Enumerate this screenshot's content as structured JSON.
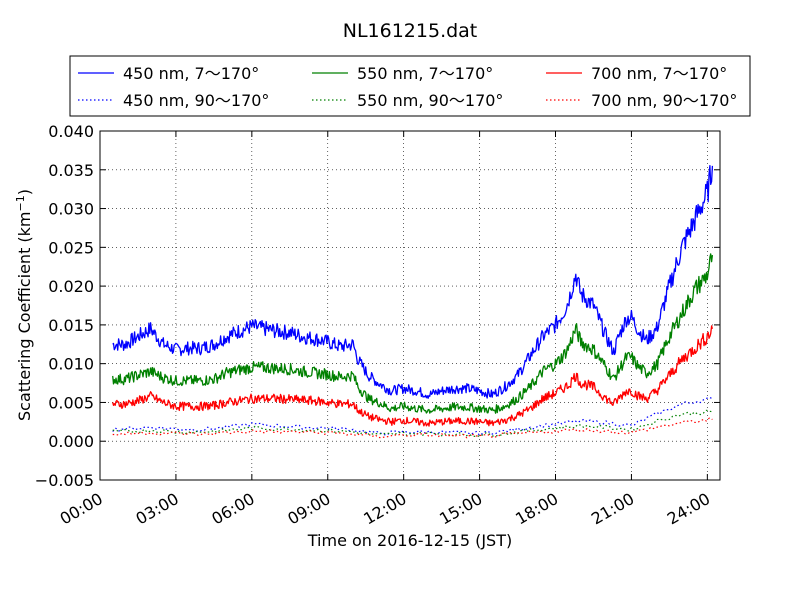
{
  "chart_data": {
    "type": "line",
    "title": "NL161215.dat",
    "xlabel": "Time on 2016-12-15 (JST)",
    "ylabel_main": "Scattering Coefficient (km",
    "ylabel_sup": "−1",
    "ylabel_close": ")",
    "xlim": [
      0,
      24.5
    ],
    "ylim": [
      -0.005,
      0.04
    ],
    "x_ticks": [
      0,
      3,
      6,
      9,
      12,
      15,
      18,
      21,
      24
    ],
    "x_tick_labels": [
      "00:00",
      "03:00",
      "06:00",
      "09:00",
      "12:00",
      "15:00",
      "18:00",
      "21:00",
      "24:00"
    ],
    "y_ticks": [
      -0.005,
      0.0,
      0.005,
      0.01,
      0.015,
      0.02,
      0.025,
      0.03,
      0.035,
      0.04
    ],
    "y_tick_labels": [
      "−0.005",
      "0.000",
      "0.005",
      "0.010",
      "0.015",
      "0.020",
      "0.025",
      "0.030",
      "0.035",
      "0.040"
    ],
    "grid": true,
    "legend_position": "top",
    "x_unit": "hours since 00:00 JST",
    "series": [
      {
        "name": "450 nm, 7～170°",
        "color": "#0000ff",
        "style": "solid",
        "x": [
          0.5,
          1,
          1.5,
          2,
          2.5,
          3,
          3.5,
          4,
          4.5,
          5,
          5.5,
          6,
          6.5,
          7,
          7.5,
          8,
          8.5,
          9,
          9.5,
          10,
          10.2,
          10.6,
          11,
          11.5,
          12,
          12.5,
          13,
          13.5,
          14,
          14.5,
          15,
          15.5,
          16,
          16.5,
          17,
          17.5,
          18,
          18.3,
          18.5,
          18.8,
          19,
          19.5,
          20,
          20.3,
          20.5,
          20.8,
          21,
          21.3,
          21.6,
          22,
          22.5,
          23,
          23.5,
          24,
          24.2
        ],
        "y": [
          0.0125,
          0.0125,
          0.0135,
          0.0145,
          0.0125,
          0.0118,
          0.012,
          0.012,
          0.0125,
          0.0135,
          0.0142,
          0.0148,
          0.0145,
          0.0142,
          0.014,
          0.0135,
          0.0132,
          0.0128,
          0.0122,
          0.0125,
          0.0105,
          0.0085,
          0.0075,
          0.0065,
          0.0068,
          0.0065,
          0.006,
          0.0065,
          0.0068,
          0.0068,
          0.0065,
          0.006,
          0.007,
          0.0085,
          0.011,
          0.0135,
          0.015,
          0.0165,
          0.018,
          0.0215,
          0.019,
          0.0175,
          0.0135,
          0.0115,
          0.0135,
          0.0158,
          0.016,
          0.0142,
          0.013,
          0.0145,
          0.02,
          0.025,
          0.0285,
          0.032,
          0.0355
        ]
      },
      {
        "name": "450 nm, 90～170°",
        "color": "#0000ff",
        "style": "dotted",
        "x": [
          0.5,
          2,
          3,
          4,
          5,
          6,
          7,
          8,
          9,
          10,
          11,
          12,
          13,
          14,
          15,
          16,
          17,
          18,
          19,
          20,
          21,
          22,
          23,
          24.2
        ],
        "y": [
          0.0015,
          0.0018,
          0.0016,
          0.0015,
          0.0018,
          0.0022,
          0.002,
          0.0018,
          0.0017,
          0.0015,
          0.001,
          0.0012,
          0.0012,
          0.0011,
          0.001,
          0.0013,
          0.0018,
          0.0022,
          0.0026,
          0.0024,
          0.002,
          0.0035,
          0.0048,
          0.0055
        ]
      },
      {
        "name": "550 nm, 7～170°",
        "color": "#008000",
        "style": "solid",
        "x": [
          0.5,
          1,
          1.5,
          2,
          2.5,
          3,
          3.5,
          4,
          4.5,
          5,
          5.5,
          6,
          6.5,
          7,
          7.5,
          8,
          8.5,
          9,
          9.5,
          10,
          10.2,
          10.6,
          11,
          11.5,
          12,
          12.5,
          13,
          13.5,
          14,
          14.5,
          15,
          15.5,
          16,
          16.5,
          17,
          17.5,
          18,
          18.3,
          18.5,
          18.8,
          19,
          19.5,
          20,
          20.3,
          20.5,
          20.8,
          21,
          21.3,
          21.6,
          22,
          22.5,
          23,
          23.5,
          24,
          24.2
        ],
        "y": [
          0.008,
          0.008,
          0.0085,
          0.009,
          0.0082,
          0.0078,
          0.0078,
          0.0078,
          0.008,
          0.0088,
          0.0092,
          0.0095,
          0.0095,
          0.0094,
          0.0093,
          0.009,
          0.0088,
          0.0086,
          0.0083,
          0.0085,
          0.007,
          0.0055,
          0.005,
          0.0042,
          0.0045,
          0.0042,
          0.004,
          0.0042,
          0.0044,
          0.0044,
          0.0042,
          0.004,
          0.0045,
          0.0055,
          0.007,
          0.009,
          0.01,
          0.011,
          0.012,
          0.0145,
          0.0128,
          0.0118,
          0.0095,
          0.008,
          0.0092,
          0.0108,
          0.0108,
          0.0095,
          0.0088,
          0.0098,
          0.0135,
          0.0165,
          0.0195,
          0.0215,
          0.024
        ]
      },
      {
        "name": "550 nm, 90～170°",
        "color": "#008000",
        "style": "dotted",
        "x": [
          0.5,
          2,
          3,
          4,
          5,
          6,
          7,
          8,
          9,
          10,
          11,
          12,
          13,
          14,
          15,
          16,
          17,
          18,
          19,
          20,
          21,
          22,
          23,
          24.2
        ],
        "y": [
          0.0012,
          0.0014,
          0.0012,
          0.0012,
          0.0014,
          0.0017,
          0.0016,
          0.0015,
          0.0014,
          0.0012,
          0.0008,
          0.001,
          0.001,
          0.0009,
          0.0008,
          0.001,
          0.0014,
          0.0017,
          0.002,
          0.0018,
          0.0015,
          0.0026,
          0.0035,
          0.0038
        ]
      },
      {
        "name": "700 nm, 7～170°",
        "color": "#ff0000",
        "style": "solid",
        "x": [
          0.5,
          1,
          1.5,
          2,
          2.5,
          3,
          3.5,
          4,
          4.5,
          5,
          5.5,
          6,
          6.5,
          7,
          7.5,
          8,
          8.5,
          9,
          9.5,
          10,
          10.2,
          10.6,
          11,
          11.5,
          12,
          12.5,
          13,
          13.5,
          14,
          14.5,
          15,
          15.5,
          16,
          16.5,
          17,
          17.5,
          18,
          18.3,
          18.5,
          18.8,
          19,
          19.5,
          20,
          20.3,
          20.5,
          20.8,
          21,
          21.3,
          21.6,
          22,
          22.5,
          23,
          23.5,
          24,
          24.2
        ],
        "y": [
          0.0048,
          0.0048,
          0.0052,
          0.0058,
          0.005,
          0.0045,
          0.0045,
          0.0045,
          0.0046,
          0.005,
          0.0052,
          0.0055,
          0.0055,
          0.0055,
          0.0054,
          0.0053,
          0.0052,
          0.005,
          0.0048,
          0.0048,
          0.004,
          0.0032,
          0.0028,
          0.0025,
          0.0027,
          0.0025,
          0.0023,
          0.0025,
          0.0026,
          0.0026,
          0.0025,
          0.0023,
          0.0027,
          0.0033,
          0.0042,
          0.0055,
          0.0062,
          0.0068,
          0.0072,
          0.0085,
          0.0075,
          0.007,
          0.0055,
          0.0048,
          0.0055,
          0.0065,
          0.0065,
          0.0058,
          0.0055,
          0.0065,
          0.0085,
          0.0105,
          0.012,
          0.0135,
          0.0145
        ]
      },
      {
        "name": "700 nm, 90～170°",
        "color": "#ff0000",
        "style": "dotted",
        "x": [
          0.5,
          2,
          3,
          4,
          5,
          6,
          7,
          8,
          9,
          10,
          11,
          12,
          13,
          14,
          15,
          16,
          17,
          18,
          19,
          20,
          21,
          22,
          23,
          24.2
        ],
        "y": [
          0.0009,
          0.0011,
          0.001,
          0.0009,
          0.0011,
          0.0013,
          0.0012,
          0.0012,
          0.0011,
          0.0009,
          0.0006,
          0.0008,
          0.0008,
          0.0007,
          0.0006,
          0.0008,
          0.0011,
          0.0013,
          0.0015,
          0.0013,
          0.0011,
          0.0018,
          0.0024,
          0.0028
        ]
      }
    ]
  }
}
